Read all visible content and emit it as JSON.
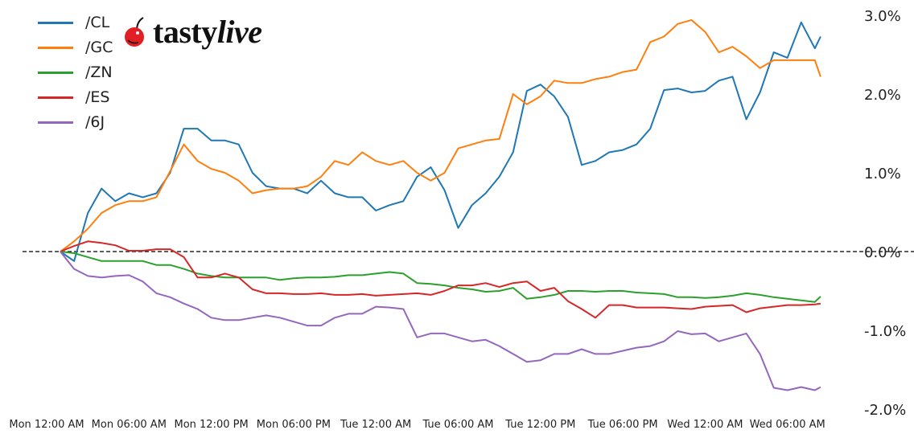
{
  "logo": {
    "text_a": "tasty",
    "text_b": "live",
    "cherry_color": "#e31e24"
  },
  "chart_data": {
    "type": "line",
    "title": "",
    "xlabel": "",
    "ylabel": "",
    "ylim": [
      -2.0,
      3.0
    ],
    "y_ticks": [
      "3.0%",
      "2.0%",
      "1.0%",
      "0.0%",
      "-1.0%",
      "-2.0%"
    ],
    "y_tick_values": [
      3,
      2,
      1,
      0,
      -1,
      -2
    ],
    "y_axis_position": "right",
    "x_ticks": [
      "Mon 12:00 AM",
      "Mon 06:00 AM",
      "Mon 12:00 PM",
      "Mon 06:00 PM",
      "Tue 12:00 AM",
      "Tue 06:00 AM",
      "Tue 12:00 PM",
      "Tue 06:00 PM",
      "Wed 12:00 AM",
      "Wed 06:00 AM"
    ],
    "reference_line": {
      "y": 0,
      "style": "dashed",
      "color": "#000000"
    },
    "grid": false,
    "legend_position": "top-left",
    "x": [
      "Mon 01:00 AM",
      "Mon 02:00 AM",
      "Mon 03:00 AM",
      "Mon 04:00 AM",
      "Mon 05:00 AM",
      "Mon 06:00 AM",
      "Mon 07:00 AM",
      "Mon 08:00 AM",
      "Mon 09:00 AM",
      "Mon 10:00 AM",
      "Mon 11:00 AM",
      "Mon 12:00 PM",
      "Mon 01:00 PM",
      "Mon 02:00 PM",
      "Mon 03:00 PM",
      "Mon 04:00 PM",
      "Mon 05:00 PM",
      "Mon 06:00 PM",
      "Mon 07:00 PM",
      "Mon 08:00 PM",
      "Mon 09:00 PM",
      "Mon 10:00 PM",
      "Mon 11:00 PM",
      "Tue 12:00 AM",
      "Tue 01:00 AM",
      "Tue 02:00 AM",
      "Tue 03:00 AM",
      "Tue 04:00 AM",
      "Tue 05:00 AM",
      "Tue 06:00 AM",
      "Tue 07:00 AM",
      "Tue 08:00 AM",
      "Tue 09:00 AM",
      "Tue 10:00 AM",
      "Tue 11:00 AM",
      "Tue 12:00 PM",
      "Tue 01:00 PM",
      "Tue 02:00 PM",
      "Tue 03:00 PM",
      "Tue 04:00 PM",
      "Tue 05:00 PM",
      "Tue 06:00 PM",
      "Tue 07:00 PM",
      "Tue 08:00 PM",
      "Tue 09:00 PM",
      "Tue 10:00 PM",
      "Tue 11:00 PM",
      "Wed 12:00 AM",
      "Wed 01:00 AM",
      "Wed 02:00 AM",
      "Wed 03:00 AM",
      "Wed 04:00 AM",
      "Wed 05:00 AM",
      "Wed 06:00 AM",
      "Wed 07:00 AM",
      "Wed 08:00 AM",
      "Wed 08:25 AM"
    ],
    "series": [
      {
        "name": "/CL",
        "color": "#1f77b4",
        "values": [
          0.0,
          -0.12,
          0.49,
          0.8,
          0.64,
          0.74,
          0.69,
          0.74,
          1.0,
          1.56,
          1.56,
          1.41,
          1.41,
          1.36,
          1.0,
          0.83,
          0.8,
          0.8,
          0.74,
          0.9,
          0.74,
          0.69,
          0.69,
          0.52,
          0.59,
          0.64,
          0.95,
          1.07,
          0.78,
          0.3,
          0.59,
          0.74,
          0.95,
          1.26,
          2.04,
          2.12,
          1.97,
          1.71,
          1.1,
          1.15,
          1.26,
          1.29,
          1.36,
          1.56,
          2.05,
          2.07,
          2.02,
          2.04,
          2.17,
          2.22,
          1.68,
          2.02,
          2.53,
          2.46,
          2.91,
          2.58,
          2.73
        ]
      },
      {
        "name": "/GC",
        "color": "#ff7f0e",
        "values": [
          0.0,
          0.13,
          0.29,
          0.49,
          0.59,
          0.64,
          0.64,
          0.69,
          1.02,
          1.36,
          1.15,
          1.05,
          1.0,
          0.9,
          0.74,
          0.78,
          0.8,
          0.8,
          0.83,
          0.95,
          1.15,
          1.1,
          1.26,
          1.15,
          1.1,
          1.15,
          1.0,
          0.9,
          1.0,
          1.31,
          1.36,
          1.41,
          1.43,
          2.0,
          1.87,
          1.97,
          2.17,
          2.14,
          2.14,
          2.19,
          2.22,
          2.28,
          2.31,
          2.66,
          2.73,
          2.89,
          2.94,
          2.79,
          2.53,
          2.6,
          2.48,
          2.33,
          2.43,
          2.43,
          2.43,
          2.43,
          2.22
        ]
      },
      {
        "name": "/ZN",
        "color": "#2ca02c",
        "values": [
          0.0,
          -0.02,
          -0.07,
          -0.12,
          -0.12,
          -0.12,
          -0.12,
          -0.17,
          -0.17,
          -0.22,
          -0.28,
          -0.31,
          -0.33,
          -0.33,
          -0.33,
          -0.33,
          -0.36,
          -0.34,
          -0.33,
          -0.33,
          -0.32,
          -0.3,
          -0.3,
          -0.28,
          -0.26,
          -0.28,
          -0.4,
          -0.41,
          -0.43,
          -0.46,
          -0.48,
          -0.51,
          -0.5,
          -0.46,
          -0.6,
          -0.58,
          -0.55,
          -0.5,
          -0.5,
          -0.51,
          -0.5,
          -0.5,
          -0.52,
          -0.53,
          -0.54,
          -0.58,
          -0.58,
          -0.59,
          -0.58,
          -0.56,
          -0.53,
          -0.55,
          -0.58,
          -0.6,
          -0.62,
          -0.64,
          -0.57
        ]
      },
      {
        "name": "/ES",
        "color": "#d62728",
        "values": [
          0.0,
          0.07,
          0.13,
          0.11,
          0.08,
          0.01,
          0.01,
          0.03,
          0.03,
          -0.07,
          -0.33,
          -0.33,
          -0.28,
          -0.33,
          -0.48,
          -0.53,
          -0.53,
          -0.54,
          -0.54,
          -0.53,
          -0.55,
          -0.55,
          -0.54,
          -0.56,
          -0.55,
          -0.54,
          -0.53,
          -0.55,
          -0.5,
          -0.43,
          -0.43,
          -0.4,
          -0.45,
          -0.4,
          -0.38,
          -0.5,
          -0.46,
          -0.63,
          -0.73,
          -0.84,
          -0.68,
          -0.68,
          -0.71,
          -0.71,
          -0.71,
          -0.72,
          -0.73,
          -0.7,
          -0.69,
          -0.68,
          -0.77,
          -0.72,
          -0.7,
          -0.68,
          -0.68,
          -0.67,
          -0.66
        ]
      },
      {
        "name": "/6J",
        "color": "#9467bd",
        "values": [
          0.0,
          -0.22,
          -0.31,
          -0.33,
          -0.31,
          -0.3,
          -0.38,
          -0.53,
          -0.58,
          -0.66,
          -0.73,
          -0.84,
          -0.87,
          -0.87,
          -0.84,
          -0.81,
          -0.84,
          -0.89,
          -0.94,
          -0.94,
          -0.84,
          -0.79,
          -0.79,
          -0.7,
          -0.71,
          -0.73,
          -1.09,
          -1.04,
          -1.04,
          -1.09,
          -1.14,
          -1.12,
          -1.2,
          -1.3,
          -1.4,
          -1.38,
          -1.3,
          -1.3,
          -1.24,
          -1.3,
          -1.3,
          -1.26,
          -1.22,
          -1.2,
          -1.14,
          -1.01,
          -1.05,
          -1.04,
          -1.14,
          -1.09,
          -1.04,
          -1.3,
          -1.73,
          -1.76,
          -1.72,
          -1.76,
          -1.72
        ]
      }
    ]
  }
}
